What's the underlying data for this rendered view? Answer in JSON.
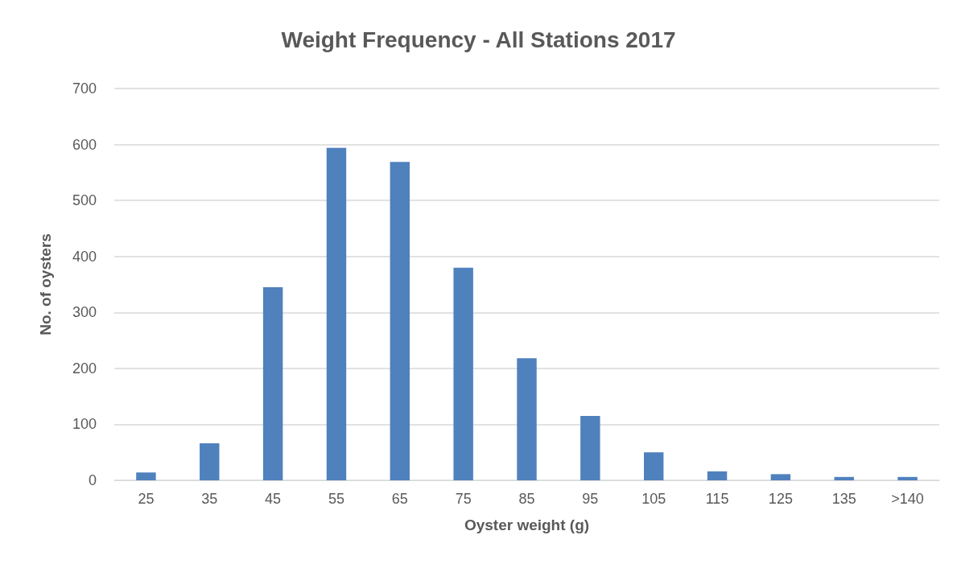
{
  "chart_data": {
    "type": "bar",
    "title": "Weight Frequency - All Stations 2017",
    "xlabel": "Oyster weight (g)",
    "ylabel": "No. of oysters",
    "categories": [
      "25",
      "35",
      "45",
      "55",
      "65",
      "75",
      "85",
      "95",
      "105",
      "115",
      "125",
      "135",
      ">140"
    ],
    "values": [
      14,
      66,
      345,
      594,
      569,
      380,
      218,
      115,
      50,
      16,
      11,
      6,
      6
    ],
    "color": "#4f81bd",
    "ylim": [
      0,
      700
    ],
    "yticks": [
      0,
      100,
      200,
      300,
      400,
      500,
      600,
      700
    ],
    "grid": "y"
  }
}
